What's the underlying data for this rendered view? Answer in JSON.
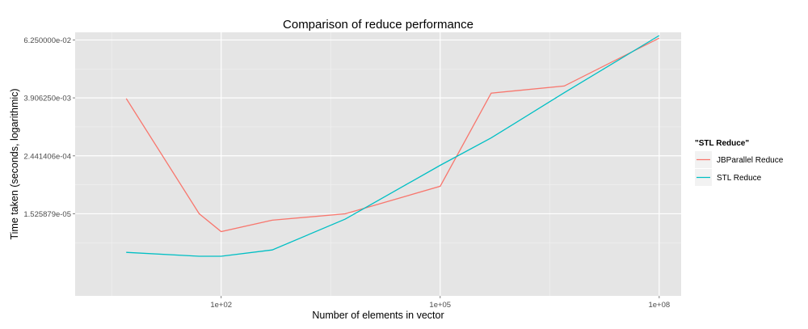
{
  "chart_data": {
    "type": "line",
    "title": "Comparison of reduce  performance",
    "xlabel": "Number  of elements in vector",
    "ylabel": "Time taken (seconds, logarithmic)",
    "x_scale": "log10",
    "y_scale": "log2",
    "xlim": [
      1,
      200000000
    ],
    "ylim": [
      3e-07,
      0.09
    ],
    "x_ticks": [
      {
        "value": 100,
        "label": "1e+02"
      },
      {
        "value": 100000,
        "label": "1e+05"
      },
      {
        "value": 100000000,
        "label": "1e+08"
      }
    ],
    "y_ticks": [
      {
        "value": 1.525879e-05,
        "label": "1.525879e-05"
      },
      {
        "value": 0.0002441406,
        "label": "2.441406e-04"
      },
      {
        "value": 0.00390625,
        "label": "3.906250e-03"
      },
      {
        "value": 0.0625,
        "label": "6.250000e-02"
      }
    ],
    "grid": true,
    "legend": {
      "title": "\"STL Reduce\"",
      "position": "right"
    },
    "series": [
      {
        "name": "JBParallel Reduce",
        "color": "#F8766D",
        "x": [
          5,
          50,
          100,
          500,
          5000,
          100000,
          500000,
          5000000,
          100000000
        ],
        "y": [
          0.0038,
          1.53e-05,
          6.5e-06,
          1.12e-05,
          1.52e-05,
          5.7e-05,
          0.0049,
          0.0069,
          0.068
        ]
      },
      {
        "name": "STL Reduce",
        "color": "#00BFC4",
        "x": [
          5,
          50,
          100,
          500,
          5000,
          100000,
          500000,
          5000000,
          100000000
        ],
        "y": [
          2.4e-06,
          2e-06,
          2e-06,
          2.7e-06,
          1.18e-05,
          0.000155,
          0.000575,
          0.005,
          0.077
        ]
      }
    ]
  }
}
